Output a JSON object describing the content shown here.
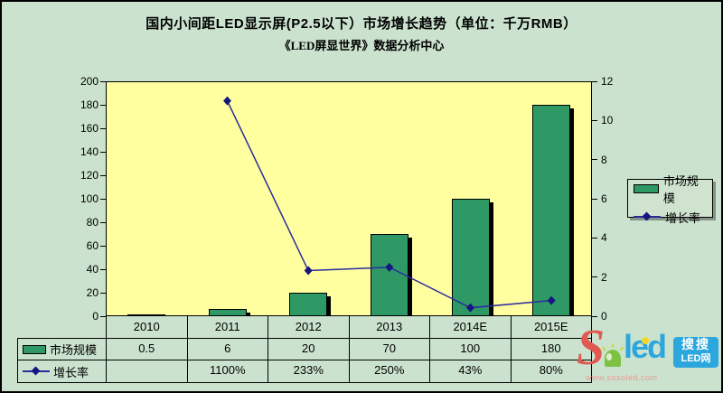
{
  "title": "国内小间距LED显示屏(P2.5以下）市场增长趋势（单位：千万RMB）",
  "subtitle": "《LED屏显世界》数据分析中心",
  "chart_data": {
    "type": "combo-bar-line",
    "categories": [
      "2010",
      "2011",
      "2012",
      "2013",
      "2014E",
      "2015E"
    ],
    "series": [
      {
        "name": "市场规模",
        "type": "bar",
        "axis": "left",
        "values": [
          0.5,
          6,
          20,
          70,
          100,
          180
        ]
      },
      {
        "name": "增长率",
        "type": "line",
        "axis": "right",
        "values": [
          null,
          11,
          2.33,
          2.5,
          0.43,
          0.8
        ]
      }
    ],
    "left_axis": {
      "min": 0,
      "max": 200,
      "step": 20,
      "ticks": [
        "0",
        "20",
        "40",
        "60",
        "80",
        "100",
        "120",
        "140",
        "160",
        "180",
        "200"
      ]
    },
    "right_axis": {
      "min": 0,
      "max": 12,
      "step": 2,
      "ticks": [
        "0",
        "2",
        "4",
        "6",
        "8",
        "10",
        "12"
      ]
    },
    "grid": "off",
    "legend_position": "right"
  },
  "table": {
    "rows": [
      {
        "label": "市场规模",
        "values": [
          "0.5",
          "6",
          "20",
          "70",
          "100",
          "180"
        ]
      },
      {
        "label": "增长率",
        "values": [
          "",
          "1100%",
          "233%",
          "250%",
          "43%",
          "80%"
        ]
      }
    ]
  },
  "watermark": {
    "brand_s": "S",
    "brand_rest": "led",
    "url": "www.sosoled.com",
    "cn_top": "搜搜",
    "cn_bottom": "LED网"
  },
  "colors": {
    "frame_bg": "#CBE3CE",
    "plot_bg": "#FFFF9F",
    "bar_fill": "#2F9965",
    "bar_border": "#000000",
    "bar_shadow": "#000000",
    "line_color": "#2B2B9E",
    "marker_color": "#16167E",
    "legend_bg": "#CFE3CF",
    "logo_red": "#E05A52",
    "logo_blue": "#2BA7DE",
    "logo_green": "#7DC242",
    "logo_yellow": "#F2D62B",
    "logo_url_color": "#E89A94"
  }
}
